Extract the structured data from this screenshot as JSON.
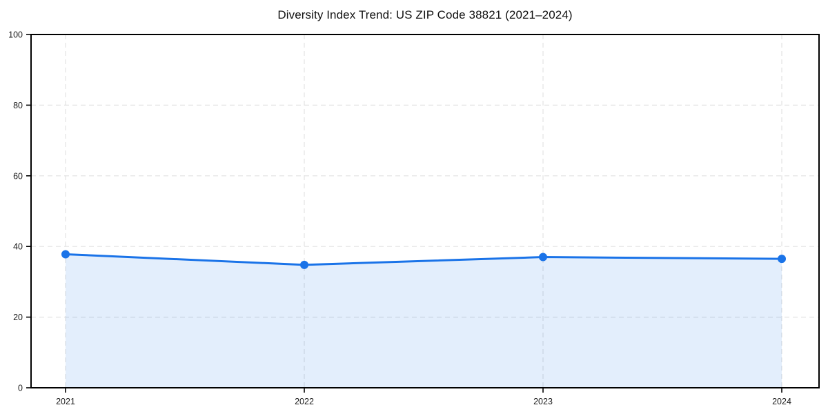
{
  "figure": {
    "background": "#ffffff"
  },
  "chart_data": {
    "type": "area",
    "title": "Diversity Index Trend: US ZIP Code 38821 (2021–2024)",
    "x": [
      "2021",
      "2022",
      "2023",
      "2024"
    ],
    "series": [
      {
        "name": "Diversity Index",
        "values": [
          37.8,
          34.8,
          37.0,
          36.5
        ]
      }
    ],
    "xlabel": "",
    "ylabel": "",
    "ylim": [
      0,
      100
    ],
    "yticks": [
      0,
      20,
      40,
      60,
      80,
      100
    ],
    "xticks": [
      "2021",
      "2022",
      "2023",
      "2024"
    ],
    "grid": true,
    "grid_style": "dashed",
    "legend": false,
    "fill_to": 0,
    "fill_opacity": 0.12,
    "colors": {
      "line": "#1a73e8",
      "marker": "#1a73e8",
      "fill": "#1a73e8",
      "grid": "#e2e2e2",
      "spine": "#000000",
      "tick_text": "#1b1b1b",
      "title_text": "#111111"
    }
  }
}
